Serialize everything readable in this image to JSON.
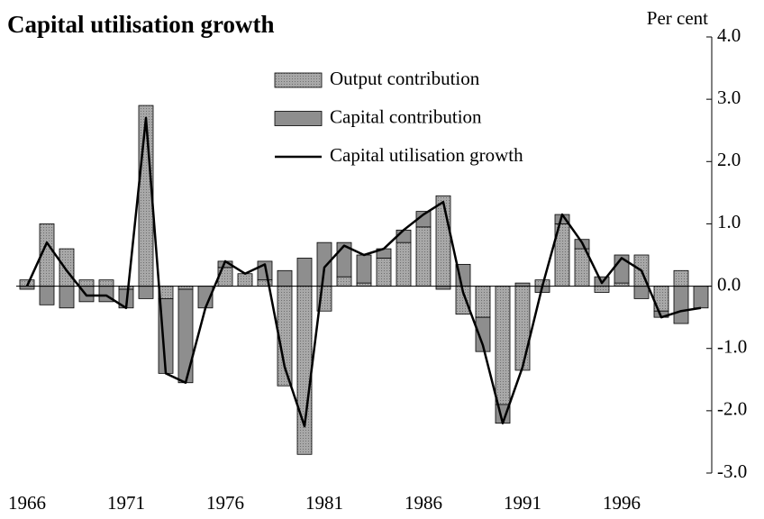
{
  "chart_data": {
    "type": "bar",
    "stacked": true,
    "title": "Capital utilisation growth",
    "y_label": "Per cent",
    "categories": [
      "1966",
      null,
      null,
      null,
      null,
      "1971",
      null,
      null,
      null,
      null,
      "1976",
      null,
      null,
      null,
      null,
      "1981",
      null,
      null,
      null,
      null,
      "1986",
      null,
      null,
      null,
      null,
      "1991",
      null,
      null,
      null,
      null,
      "1996",
      null,
      null,
      null,
      null
    ],
    "ylim": [
      -3.0,
      4.0
    ],
    "yticks": [
      {
        "value": -3,
        "label": "-3.0"
      },
      {
        "value": -2,
        "label": "-2.0"
      },
      {
        "value": -1,
        "label": "-1.0"
      },
      {
        "value": 0,
        "label": "0.0"
      },
      {
        "value": 1,
        "label": "1.0"
      },
      {
        "value": 2,
        "label": "2.0"
      },
      {
        "value": 3,
        "label": "3.0"
      },
      {
        "value": 4,
        "label": "4.0"
      }
    ],
    "series": [
      {
        "name": "Output contribution",
        "type": "bar",
        "color": "#a8a8a8",
        "pattern": "dotted",
        "values": [
          0.1,
          1.0,
          0.6,
          0.1,
          0.1,
          -0.05,
          2.9,
          -0.2,
          -0.05,
          0,
          0.3,
          0.2,
          0.1,
          -1.6,
          -2.7,
          -0.4,
          0.15,
          0.05,
          0.45,
          0.7,
          0.95,
          1.45,
          -0.45,
          -0.5,
          -1.9,
          -1.35,
          0.1,
          1.0,
          0.6,
          -0.1,
          0.05,
          0.5,
          -0.4,
          0.25,
          0
        ]
      },
      {
        "name": "Capital contribution",
        "type": "bar",
        "color": "#8e8e8e",
        "values": [
          -0.05,
          -0.3,
          -0.35,
          -0.25,
          -0.25,
          -0.3,
          -0.2,
          -1.2,
          -1.5,
          -0.35,
          0.1,
          0.0,
          0.3,
          0.25,
          0.45,
          0.7,
          0.55,
          0.45,
          0.15,
          0.2,
          0.25,
          -0.05,
          0.35,
          -0.55,
          -0.3,
          0.05,
          -0.1,
          0.15,
          0.15,
          0.15,
          0.45,
          -0.2,
          -0.1,
          -0.6,
          -0.35
        ]
      },
      {
        "name": "Capital utilisation growth",
        "type": "line",
        "color": "#000000",
        "values": [
          0.0,
          0.7,
          0.25,
          -0.15,
          -0.15,
          -0.35,
          2.7,
          -1.4,
          -1.55,
          -0.35,
          0.4,
          0.2,
          0.35,
          -1.3,
          -2.25,
          0.3,
          0.65,
          0.5,
          0.6,
          0.9,
          1.15,
          1.35,
          -0.1,
          -0.95,
          -2.2,
          -1.3,
          0.0,
          1.15,
          0.7,
          0.05,
          0.45,
          0.25,
          -0.5,
          -0.4,
          -0.35
        ]
      }
    ]
  }
}
